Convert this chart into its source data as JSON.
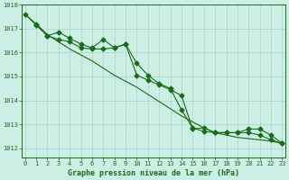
{
  "line1": {
    "x": [
      0,
      1,
      2,
      3,
      4,
      5,
      6,
      7,
      8,
      9,
      10,
      11,
      12,
      13,
      14,
      15,
      16,
      17,
      18,
      19,
      20,
      21,
      22,
      23
    ],
    "y": [
      1017.6,
      1017.2,
      1016.75,
      1016.45,
      1016.15,
      1015.9,
      1015.65,
      1015.35,
      1015.05,
      1014.8,
      1014.55,
      1014.25,
      1013.95,
      1013.65,
      1013.35,
      1013.1,
      1012.85,
      1012.65,
      1012.55,
      1012.45,
      1012.4,
      1012.35,
      1012.3,
      1012.2
    ],
    "color": "#1a6b1a",
    "linewidth": 0.8,
    "marker": null
  },
  "line2": {
    "x": [
      1,
      2,
      3,
      4,
      5,
      6,
      7,
      8,
      9,
      10,
      11,
      12,
      13,
      14,
      15,
      16,
      17,
      18,
      19,
      20,
      21,
      22,
      23
    ],
    "y": [
      1017.2,
      1016.7,
      1016.85,
      1016.6,
      1016.35,
      1016.2,
      1016.55,
      1016.2,
      1016.35,
      1015.05,
      1014.85,
      1014.65,
      1014.45,
      1014.2,
      1012.8,
      1012.85,
      1012.65,
      1012.65,
      1012.65,
      1012.8,
      1012.8,
      1012.55,
      1012.2
    ],
    "color": "#1a6b1a",
    "linewidth": 0.8,
    "marker": "D",
    "markersize": 2.5
  },
  "line3": {
    "x": [
      0,
      1,
      2,
      3,
      4,
      5,
      6,
      7,
      8,
      9,
      10,
      11,
      12,
      13,
      14,
      15,
      16,
      17,
      18,
      19,
      20,
      21,
      22,
      23
    ],
    "y": [
      1017.6,
      1017.15,
      1016.7,
      1016.55,
      1016.45,
      1016.2,
      1016.15,
      1016.15,
      1016.2,
      1016.35,
      1015.55,
      1015.05,
      1014.7,
      1014.5,
      1013.6,
      1012.85,
      1012.7,
      1012.65,
      1012.65,
      1012.65,
      1012.65,
      1012.55,
      1012.35,
      1012.2
    ],
    "color": "#1a6b1a",
    "linewidth": 0.8,
    "marker": "D",
    "markersize": 2.5
  },
  "xlabel": "Graphe pression niveau de la mer (hPa)",
  "xlim": [
    -0.3,
    23.3
  ],
  "ylim": [
    1011.6,
    1018.0
  ],
  "yticks": [
    1012,
    1013,
    1014,
    1015,
    1016,
    1017,
    1018
  ],
  "xticks": [
    0,
    1,
    2,
    3,
    4,
    5,
    6,
    7,
    8,
    9,
    10,
    11,
    12,
    13,
    14,
    15,
    16,
    17,
    18,
    19,
    20,
    21,
    22,
    23
  ],
  "bg_color": "#cceee4",
  "grid_color": "#aad4c8",
  "line_color": "#1a6b1a",
  "xlabel_color": "#1a6b1a",
  "tick_color": "#1a6b1a",
  "axis_color": "#1a6b1a",
  "xlabel_fontsize": 6.0,
  "tick_fontsize": 5.0
}
